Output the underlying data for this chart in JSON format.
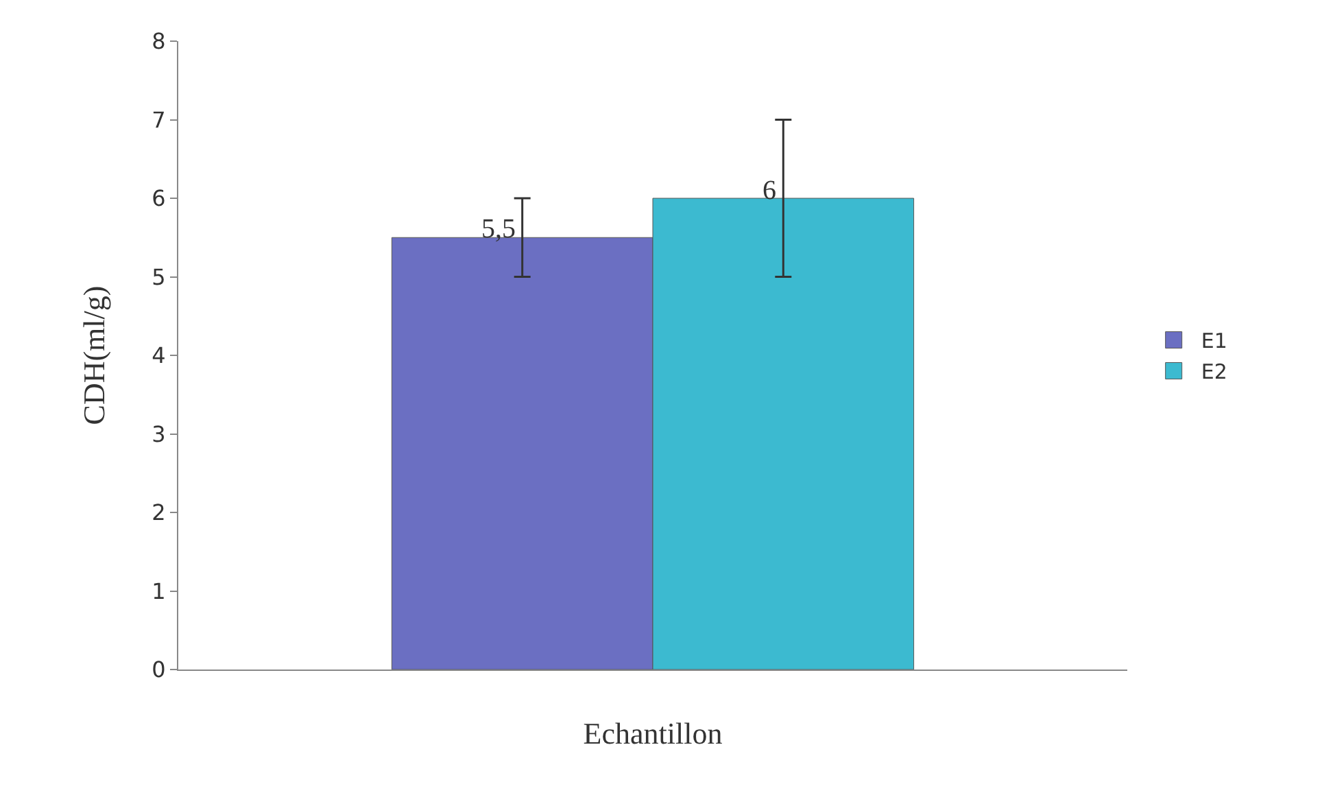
{
  "chart_data": {
    "type": "bar",
    "xlabel": "Echantillon",
    "ylabel": "CDH(ml/g)",
    "categories": [
      null
    ],
    "series": [
      {
        "name": "E1",
        "color": "#6b6fc2",
        "values": [
          5.5
        ],
        "errors": [
          0.5
        ],
        "value_labels": [
          "5,5"
        ]
      },
      {
        "name": "E2",
        "color": "#3cbad0",
        "values": [
          6
        ],
        "errors": [
          1
        ],
        "value_labels": [
          "6"
        ]
      }
    ],
    "ylim": [
      0,
      8
    ],
    "yticks": [
      0,
      1,
      2,
      3,
      4,
      5,
      6,
      7,
      8
    ],
    "grid": false,
    "legend": "right",
    "tick_labels": "y"
  }
}
